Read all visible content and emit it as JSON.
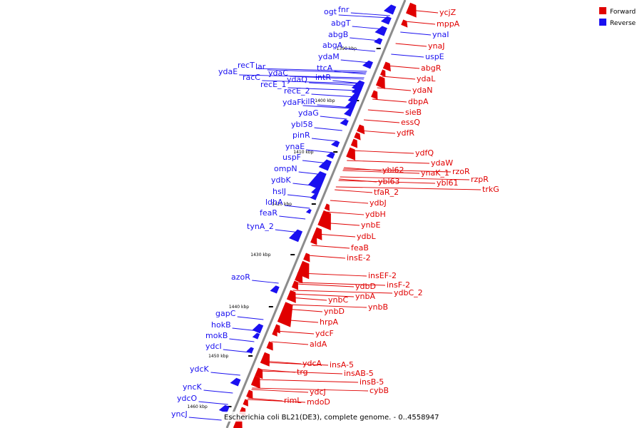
{
  "caption": "Escherichia coli BL21(DE3), complete genome. - 0..4558947",
  "legend": [
    {
      "label": "Forward",
      "color": "#e00000"
    },
    {
      "label": "Reverse",
      "color": "#1a10f0"
    }
  ],
  "ticks": [
    "1390 kbp",
    "1400 kbp",
    "1410 kbp",
    "1420 kbp",
    "1430 kbp",
    "1440 kbp",
    "1450 kbp",
    "1460 kbp"
  ],
  "reverse_genes": [
    "ogt",
    "fnr",
    "abgT",
    "abgB",
    "abgA",
    "ydaM",
    "ttcA",
    "intR",
    "recT",
    "lar",
    "ydaE",
    "racC",
    "ydaC",
    "ydaQ",
    "recE_1",
    "recE_2",
    "ydaF",
    "kilR",
    "ydaG",
    "ybl58",
    "pinR",
    "ynaE",
    "uspF",
    "ompN",
    "ydbK",
    "hslJ",
    "ldhA",
    "feaR",
    "tynA_2",
    "azoR",
    "gapC",
    "hokB",
    "mokB",
    "ydcI",
    "ydcK",
    "yncK",
    "ydcO",
    "yncJ"
  ],
  "forward_genes": [
    "ycjZ",
    "mppA",
    "ynaI",
    "ynaJ",
    "uspE",
    "abgR",
    "ydaL",
    "ydaN",
    "dbpA",
    "sieB",
    "essQ",
    "ydfR",
    "ydfQ",
    "ydaW",
    "rzoR",
    "ynaK_1",
    "rzpR",
    "trkG",
    "ybl62",
    "ybl63",
    "ybl61",
    "tfaR_2",
    "ydbJ",
    "ydbH",
    "ynbE",
    "ydbL",
    "feaB",
    "insE-2",
    "insEF-2",
    "insF-2",
    "ydbD",
    "ydbC_2",
    "ynbA",
    "ynbC",
    "ynbB",
    "ynbD",
    "hrpA",
    "ydcF",
    "aldA",
    "ydcA",
    "insA-5",
    "insAB-5",
    "trg",
    "insB-5",
    "cybB",
    "ydcJ",
    "rimL",
    "mdoD"
  ]
}
